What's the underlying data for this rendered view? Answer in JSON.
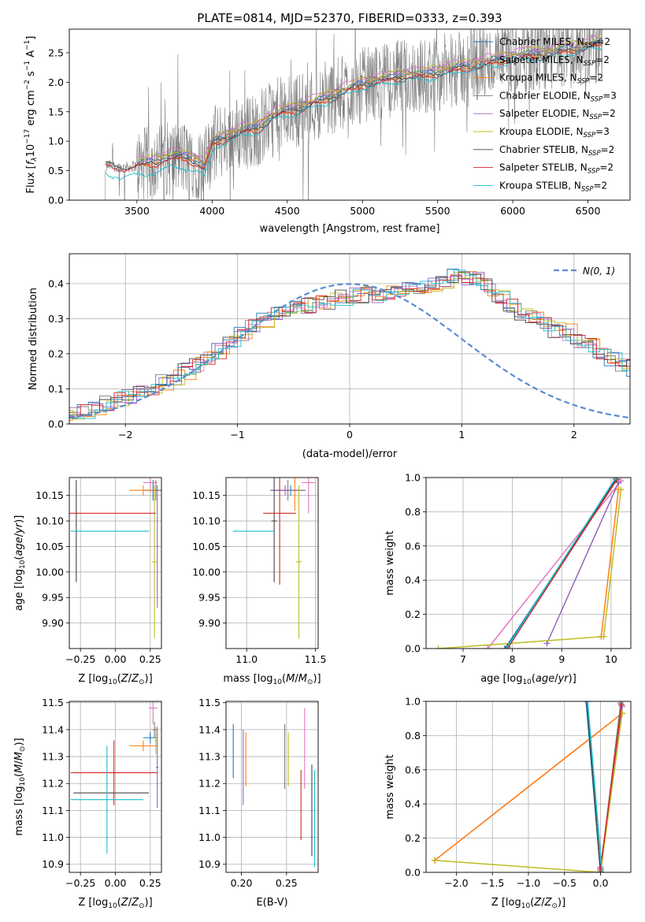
{
  "colors": {
    "chabrier_miles": "#1f77b4",
    "salpeter_miles": "#e377c2",
    "kroupa_miles": "#ff7f0e",
    "chabrier_elodie": "#7f7f7f",
    "salpeter_elodie": "#9467bd",
    "kroupa_elodie": "#bcbd22",
    "chabrier_stelib": "#444444",
    "salpeter_stelib": "#d62728",
    "kroupa_stelib": "#17becf",
    "data_gray": "#808080",
    "normal_blue": "#5b8bd1",
    "grid": "#b0b0b0"
  },
  "chart_data": [
    {
      "id": "spectrum",
      "type": "line",
      "title": "PLATE=0814, MJD=52370, FIBERID=0333, z=0.393",
      "xlabel": "wavelength [Angstrom, rest frame]",
      "ylabel": "Flux [f_λ 10^-17 erg cm^-2 s^-1 A^-1]",
      "xlim": [
        3050,
        6780
      ],
      "ylim": [
        0,
        2.9
      ],
      "xticks": [
        "3500",
        "4000",
        "4500",
        "5000",
        "5500",
        "6000",
        "6500"
      ],
      "yticks": [
        "0.0",
        "0.5",
        "1.0",
        "1.5",
        "2.0",
        "2.5"
      ],
      "grid": false,
      "legend_position": "upper-right",
      "legend": [
        {
          "label": "Chabrier MILES, N_SSP=2",
          "prefix": "Chabrier MILES, N",
          "sub": "SSP",
          "suffix": "=2",
          "color": "#1f77b4"
        },
        {
          "label": "Salpeter MILES, N_SSP=2",
          "prefix": "Salpeter MILES, N",
          "sub": "SSP",
          "suffix": "=2",
          "color": "#e377c2"
        },
        {
          "label": "Kroupa MILES, N_SSP=2",
          "prefix": "Kroupa MILES, N",
          "sub": "SSP",
          "suffix": "=2",
          "color": "#ff7f0e"
        },
        {
          "label": "Chabrier ELODIE, N_SSP=3",
          "prefix": "Chabrier ELODIE, N",
          "sub": "SSP",
          "suffix": "=3",
          "color": "#7f7f7f"
        },
        {
          "label": "Salpeter ELODIE, N_SSP=2",
          "prefix": "Salpeter ELODIE, N",
          "sub": "SSP",
          "suffix": "=2",
          "color": "#9467bd"
        },
        {
          "label": "Kroupa ELODIE, N_SSP=3",
          "prefix": "Kroupa ELODIE, N",
          "sub": "SSP",
          "suffix": "=3",
          "color": "#bcbd22"
        },
        {
          "label": "Chabrier STELIB, N_SSP=2",
          "prefix": "Chabrier STELIB, N",
          "sub": "SSP",
          "suffix": "=2",
          "color": "#444444"
        },
        {
          "label": "Salpeter STELIB, N_SSP=2",
          "prefix": "Salpeter STELIB, N",
          "sub": "SSP",
          "suffix": "=2",
          "color": "#d62728"
        },
        {
          "label": "Kroupa STELIB, N_SSP=2",
          "prefix": "Kroupa STELIB, N",
          "sub": "SSP",
          "suffix": "=2",
          "color": "#17becf"
        }
      ],
      "data_range_angstrom": [
        3290,
        6600
      ],
      "model_envelope": [
        {
          "x": 3290,
          "y": 0.6
        },
        {
          "x": 3400,
          "y": 0.55
        },
        {
          "x": 3500,
          "y": 0.58
        },
        {
          "x": 3600,
          "y": 0.62
        },
        {
          "x": 3700,
          "y": 0.7
        },
        {
          "x": 3800,
          "y": 0.72
        },
        {
          "x": 3900,
          "y": 0.65
        },
        {
          "x": 3950,
          "y": 0.55
        },
        {
          "x": 4000,
          "y": 0.95
        },
        {
          "x": 4100,
          "y": 1.05
        },
        {
          "x": 4200,
          "y": 1.15
        },
        {
          "x": 4300,
          "y": 1.2
        },
        {
          "x": 4400,
          "y": 1.4
        },
        {
          "x": 4500,
          "y": 1.5
        },
        {
          "x": 4600,
          "y": 1.55
        },
        {
          "x": 4700,
          "y": 1.65
        },
        {
          "x": 4800,
          "y": 1.75
        },
        {
          "x": 4900,
          "y": 1.85
        },
        {
          "x": 5000,
          "y": 1.95
        },
        {
          "x": 5100,
          "y": 2.0
        },
        {
          "x": 5200,
          "y": 2.05
        },
        {
          "x": 5300,
          "y": 2.1
        },
        {
          "x": 5400,
          "y": 2.1
        },
        {
          "x": 5500,
          "y": 2.15
        },
        {
          "x": 5600,
          "y": 2.2
        },
        {
          "x": 5700,
          "y": 2.25
        },
        {
          "x": 5800,
          "y": 2.3
        },
        {
          "x": 5900,
          "y": 2.35
        },
        {
          "x": 6000,
          "y": 2.4
        },
        {
          "x": 6100,
          "y": 2.45
        },
        {
          "x": 6200,
          "y": 2.45
        },
        {
          "x": 6300,
          "y": 2.5
        },
        {
          "x": 6400,
          "y": 2.55
        },
        {
          "x": 6500,
          "y": 2.6
        },
        {
          "x": 6600,
          "y": 2.65
        }
      ]
    },
    {
      "id": "residuals",
      "type": "histogram",
      "xlabel": "(data-model)/error",
      "ylabel": "Normed distribution",
      "xlim": [
        -2.5,
        2.5
      ],
      "ylim": [
        0,
        0.485
      ],
      "xticks": [
        "-2",
        "-1",
        "0",
        "1",
        "2"
      ],
      "yticks": [
        "0.0",
        "0.1",
        "0.2",
        "0.3",
        "0.4"
      ],
      "grid": true,
      "legend_position": "upper-right",
      "normal_label": "N(0, 1)",
      "bin_width": 0.1,
      "mean_profile": [
        0.02,
        0.025,
        0.03,
        0.03,
        0.04,
        0.05,
        0.06,
        0.07,
        0.08,
        0.09,
        0.1,
        0.12,
        0.13,
        0.15,
        0.17,
        0.19,
        0.21,
        0.24,
        0.26,
        0.28,
        0.3,
        0.31,
        0.32,
        0.33,
        0.34,
        0.35,
        0.35,
        0.36,
        0.37,
        0.37,
        0.36,
        0.37,
        0.37,
        0.38,
        0.39,
        0.4,
        0.41,
        0.42,
        0.42,
        0.41,
        0.39,
        0.36,
        0.34,
        0.32,
        0.31,
        0.29,
        0.27,
        0.26,
        0.24,
        0.22,
        0.2,
        0.19,
        0.17,
        0.16,
        0.15,
        0.13,
        0.12,
        0.11,
        0.1,
        0.09,
        0.08,
        0.075,
        0.07,
        0.06,
        0.055,
        0.05
      ]
    },
    {
      "id": "age_vs_z",
      "type": "errorbar",
      "xlabel": "Z [log10(Z/Z⊙)]",
      "ylabel": "age [log10(age/yr)]",
      "xlim": [
        -0.33,
        0.33
      ],
      "ylim": [
        9.85,
        10.185
      ],
      "xticks": [
        "-0.25",
        "0.00",
        "0.25"
      ],
      "yticks": [
        "9.90",
        "9.95",
        "10.00",
        "10.05",
        "10.10",
        "10.15"
      ],
      "grid": true,
      "points": [
        {
          "model": "chabrier_miles",
          "x": 0.27,
          "y": 10.16,
          "xerr": 0.06,
          "yerr": 0.02
        },
        {
          "model": "salpeter_miles",
          "x": 0.25,
          "y": 10.175,
          "xerr": 0.05,
          "yerr": 0.02
        },
        {
          "model": "kroupa_miles",
          "x": 0.2,
          "y": 10.16,
          "xerr": 0.1,
          "yerr": 0.01
        },
        {
          "model": "chabrier_elodie",
          "x": 0.29,
          "y": 10.16,
          "xerr": 0.02,
          "yerr": 0.02
        },
        {
          "model": "salpeter_elodie",
          "x": 0.3,
          "y": 10.05,
          "xerr": 0.01,
          "yerr": 0.12
        },
        {
          "model": "kroupa_elodie",
          "x": 0.28,
          "y": 10.02,
          "xerr": 0.02,
          "yerr": 0.15
        },
        {
          "model": "chabrier_stelib",
          "x": -0.28,
          "y": 10.08,
          "xerr": 0.01,
          "yerr": 0.1
        },
        {
          "model": "salpeter_stelib",
          "x": -0.03,
          "y": 10.115,
          "xerr": 0.32,
          "yerr": 0.0
        },
        {
          "model": "kroupa_stelib",
          "x": -0.04,
          "y": 10.08,
          "xerr": 0.28,
          "yerr": 0.0
        }
      ]
    },
    {
      "id": "age_vs_mass",
      "type": "errorbar",
      "xlabel": "mass [log10(M/M⊙)]",
      "ylabel": "",
      "xlim": [
        10.85,
        11.52
      ],
      "ylim": [
        9.85,
        10.185
      ],
      "xticks": [
        "11.0",
        "11.5"
      ],
      "yticks": [
        "9.90",
        "9.95",
        "10.00",
        "10.05",
        "10.10",
        "10.15"
      ],
      "grid": true,
      "points": [
        {
          "model": "chabrier_miles",
          "x": 11.32,
          "y": 10.16,
          "xerr": 0.1,
          "yerr": 0.01
        },
        {
          "model": "salpeter_miles",
          "x": 11.45,
          "y": 10.175,
          "xerr": 0.05,
          "yerr": 0.06
        },
        {
          "model": "kroupa_miles",
          "x": 11.35,
          "y": 10.16,
          "xerr": 0.07,
          "yerr": 0.04
        },
        {
          "model": "chabrier_elodie",
          "x": 11.3,
          "y": 10.16,
          "xerr": 0.13,
          "yerr": 0.02
        },
        {
          "model": "salpeter_elodie",
          "x": 11.28,
          "y": 10.16,
          "xerr": 0.1,
          "yerr": 0.01
        },
        {
          "model": "kroupa_elodie",
          "x": 11.38,
          "y": 10.02,
          "xerr": 0.02,
          "yerr": 0.15
        },
        {
          "model": "chabrier_stelib",
          "x": 11.2,
          "y": 10.1,
          "xerr": 0.02,
          "yerr": 0.12
        },
        {
          "model": "salpeter_stelib",
          "x": 11.24,
          "y": 10.115,
          "xerr": 0.12,
          "yerr": 0.14
        },
        {
          "model": "kroupa_stelib",
          "x": 11.05,
          "y": 10.08,
          "xerr": 0.15,
          "yerr": 0.0
        }
      ]
    },
    {
      "id": "mass_weight_vs_age",
      "type": "line",
      "xlabel": "age [log10(age/yr)]",
      "ylabel": "mass weight",
      "xlim": [
        6.25,
        10.4
      ],
      "ylim": [
        0,
        1.0
      ],
      "xticks": [
        "7",
        "8",
        "9",
        "10"
      ],
      "yticks": [
        "0.0",
        "0.2",
        "0.4",
        "0.6",
        "0.8",
        "1.0"
      ],
      "grid": true,
      "series": [
        {
          "model": "chabrier_miles",
          "x": [
            7.85,
            10.12
          ],
          "y": [
            0.0,
            0.99
          ]
        },
        {
          "model": "salpeter_miles",
          "x": [
            7.5,
            10.2
          ],
          "y": [
            0.0,
            0.98
          ]
        },
        {
          "model": "kroupa_miles",
          "x": [
            9.8,
            10.15
          ],
          "y": [
            0.07,
            0.93
          ]
        },
        {
          "model": "chabrier_elodie",
          "x": [
            7.9,
            10.1
          ],
          "y": [
            0.0,
            1.0
          ]
        },
        {
          "model": "salpeter_elodie",
          "x": [
            8.7,
            10.15
          ],
          "y": [
            0.03,
            0.97
          ]
        },
        {
          "model": "kroupa_elodie",
          "x": [
            6.5,
            9.85,
            10.2
          ],
          "y": [
            0.0,
            0.07,
            0.93
          ]
        },
        {
          "model": "chabrier_stelib",
          "x": [
            7.9,
            10.1
          ],
          "y": [
            0.01,
            0.99
          ]
        },
        {
          "model": "salpeter_stelib",
          "x": [
            7.9,
            10.12
          ],
          "y": [
            0.0,
            0.99
          ]
        },
        {
          "model": "kroupa_stelib",
          "x": [
            7.88,
            10.1
          ],
          "y": [
            0.0,
            1.0
          ]
        }
      ]
    },
    {
      "id": "mass_vs_z",
      "type": "errorbar",
      "xlabel": "Z [log10(Z/Z⊙)]",
      "ylabel": "mass [log10(M/M⊙)]",
      "xlim": [
        -0.33,
        0.33
      ],
      "ylim": [
        10.87,
        11.505
      ],
      "xticks": [
        "-0.25",
        "0.00",
        "0.25"
      ],
      "yticks": [
        "10.9",
        "11.0",
        "11.1",
        "11.2",
        "11.3",
        "11.4",
        "11.5"
      ],
      "grid": true,
      "points": [
        {
          "model": "chabrier_miles",
          "x": 0.25,
          "y": 11.37,
          "xerr": 0.05,
          "yerr": 0.02
        },
        {
          "model": "salpeter_miles",
          "x": 0.27,
          "y": 11.48,
          "xerr": 0.03,
          "yerr": 0.06
        },
        {
          "model": "kroupa_miles",
          "x": 0.2,
          "y": 11.34,
          "xerr": 0.1,
          "yerr": 0.02
        },
        {
          "model": "chabrier_elodie",
          "x": 0.28,
          "y": 11.4,
          "xerr": 0.02,
          "yerr": 0.03
        },
        {
          "model": "salpeter_elodie",
          "x": 0.3,
          "y": 11.26,
          "xerr": 0.01,
          "yerr": 0.15
        },
        {
          "model": "kroupa_elodie",
          "x": 0.29,
          "y": 11.36,
          "xerr": 0.01,
          "yerr": 0.05
        },
        {
          "model": "chabrier_stelib",
          "x": -0.03,
          "y": 11.165,
          "xerr": 0.27,
          "yerr": 0.0
        },
        {
          "model": "salpeter_stelib",
          "x": -0.01,
          "y": 11.24,
          "xerr": 0.31,
          "yerr": 0.12
        },
        {
          "model": "kroupa_stelib",
          "x": -0.06,
          "y": 11.14,
          "xerr": 0.26,
          "yerr": 0.2
        }
      ]
    },
    {
      "id": "mass_vs_ebv",
      "type": "errorbar",
      "xlabel": "E(B-V)",
      "ylabel": "",
      "xlim": [
        0.183,
        0.285
      ],
      "ylim": [
        10.87,
        11.505
      ],
      "xticks": [
        "0.20",
        "0.25"
      ],
      "yticks": [
        "10.9",
        "11.0",
        "11.1",
        "11.2",
        "11.3",
        "11.4",
        "11.5"
      ],
      "grid": true,
      "points": [
        {
          "model": "chabrier_miles",
          "x": 0.191,
          "y": 11.32,
          "xerr": 0.0,
          "yerr": 0.1
        },
        {
          "model": "salpeter_miles",
          "x": 0.27,
          "y": 11.33,
          "xerr": 0.0,
          "yerr": 0.15
        },
        {
          "model": "kroupa_miles",
          "x": 0.205,
          "y": 11.29,
          "xerr": 0.0,
          "yerr": 0.1
        },
        {
          "model": "chabrier_elodie",
          "x": 0.248,
          "y": 11.3,
          "xerr": 0.0,
          "yerr": 0.12
        },
        {
          "model": "salpeter_elodie",
          "x": 0.202,
          "y": 11.26,
          "xerr": 0.0,
          "yerr": 0.14
        },
        {
          "model": "kroupa_elodie",
          "x": 0.252,
          "y": 11.29,
          "xerr": 0.0,
          "yerr": 0.1
        },
        {
          "model": "chabrier_stelib",
          "x": 0.278,
          "y": 11.1,
          "xerr": 0.0,
          "yerr": 0.17
        },
        {
          "model": "salpeter_stelib",
          "x": 0.266,
          "y": 11.12,
          "xerr": 0.0,
          "yerr": 0.13
        },
        {
          "model": "kroupa_stelib",
          "x": 0.281,
          "y": 11.07,
          "xerr": 0.0,
          "yerr": 0.18
        }
      ]
    },
    {
      "id": "mass_weight_vs_z",
      "type": "line",
      "xlabel": "Z [log10(Z/Z⊙)]",
      "ylabel": "mass weight",
      "xlim": [
        -2.42,
        0.42
      ],
      "ylim": [
        0,
        1.0
      ],
      "xticks": [
        "-2.0",
        "-1.5",
        "-1.0",
        "-0.5",
        "0.0"
      ],
      "yticks": [
        "0.0",
        "0.2",
        "0.4",
        "0.6",
        "0.8",
        "1.0"
      ],
      "grid": true,
      "series": [
        {
          "model": "chabrier_miles",
          "x": [
            -0.2,
            0.0
          ],
          "y": [
            1.0,
            0.0
          ]
        },
        {
          "model": "salpeter_miles",
          "x": [
            -2.3,
            0.3
          ],
          "y": [
            0.07,
            0.93
          ]
        },
        {
          "model": "kroupa_miles",
          "x": [
            -2.3,
            0.3
          ],
          "y": [
            0.07,
            0.93
          ]
        },
        {
          "model": "chabrier_elodie",
          "x": [
            0.0,
            0.28
          ],
          "y": [
            0.01,
            0.99
          ]
        },
        {
          "model": "salpeter_elodie",
          "x": [
            0.0,
            0.3
          ],
          "y": [
            0.03,
            0.97
          ]
        },
        {
          "model": "kroupa_elodie",
          "x": [
            -2.3,
            0.0,
            0.3
          ],
          "y": [
            0.07,
            0.0,
            0.93
          ]
        },
        {
          "model": "chabrier_stelib",
          "x": [
            -0.19,
            0.0
          ],
          "y": [
            1.0,
            0.0
          ]
        },
        {
          "model": "salpeter_stelib",
          "x": [
            0.0,
            0.29
          ],
          "y": [
            0.02,
            0.98
          ]
        },
        {
          "model": "kroupa_stelib",
          "x": [
            -0.18,
            0.02
          ],
          "y": [
            1.0,
            0.0
          ]
        }
      ]
    }
  ]
}
